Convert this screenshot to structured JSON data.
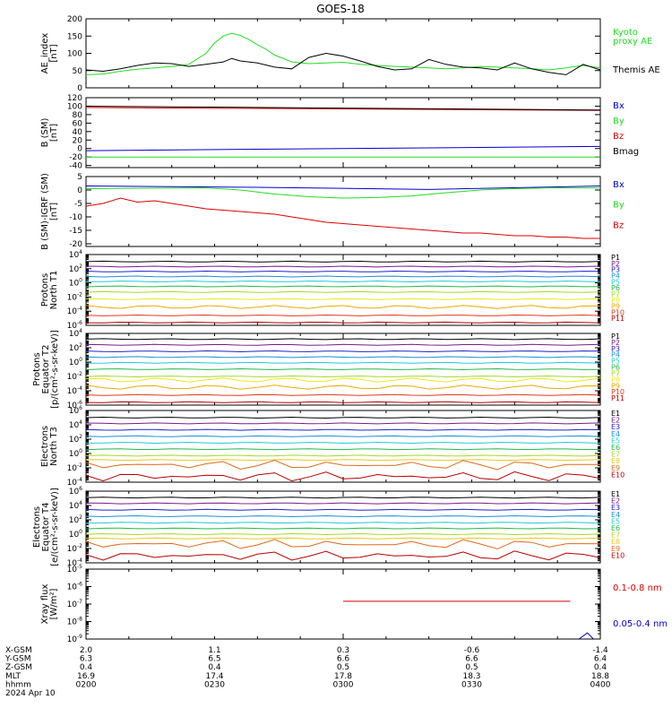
{
  "title": "GOES-18",
  "time_axis": [
    "0200",
    "0230",
    "0300",
    "0330",
    "0400"
  ],
  "ephemeris": {
    "labels": [
      "X-GSM",
      "Y-GSM",
      "Z-GSM",
      "MLT",
      "hhmm"
    ],
    "date": "2024 Apr 10",
    "rows": [
      [
        "2.0",
        "1.1",
        "0.3",
        "-0.6",
        "-1.4"
      ],
      [
        "6.3",
        "6.5",
        "6.6",
        "6.6",
        "6.4"
      ],
      [
        "0.4",
        "0.4",
        "0.5",
        "0.5",
        "0.4"
      ],
      [
        "16.9",
        "17.4",
        "17.8",
        "18.3",
        "18.8"
      ],
      [
        "0200",
        "0230",
        "0300",
        "0330",
        "0400"
      ]
    ]
  },
  "colors": {
    "black": "#000000",
    "green": "#22dd22",
    "red": "#dd0000",
    "blue": "#0000cc",
    "Kyoto": "#22dd22",
    "Themis": "#000000",
    "Bx": "#0000cc",
    "By": "#22dd22",
    "Bz": "#dd0000",
    "Bmag": "#000000",
    "P1": "#000000",
    "P2": "#7a1a8a",
    "P3": "#2222cc",
    "P4": "#1a8fd8",
    "P5": "#22c8d8",
    "P6": "#22b84a",
    "P7": "#a8d822",
    "P8": "#e8e822",
    "P9": "#f0a800",
    "P10": "#e03a1a",
    "P11": "#b80000",
    "E1": "#000000",
    "E2": "#7a1a8a",
    "E3": "#2222cc",
    "E4": "#1a8fd8",
    "E5": "#22c8d8",
    "E6": "#22b84a",
    "E7": "#a8d822",
    "E8": "#e8c822",
    "E9": "#e06a1a",
    "E10": "#b80000",
    "xray_long": "#dd0000",
    "xray_short": "#0000cc"
  },
  "chart_data": [
    {
      "type": "line",
      "id": "ae",
      "ylabel": "AE_index\n[nT]",
      "ylim": [
        0,
        200
      ],
      "log": false,
      "yticks": [
        0,
        50,
        100,
        150,
        200
      ],
      "series": [
        {
          "name": "Kyoto\nproxy AE",
          "color": "Kyoto",
          "x": [
            0,
            2,
            4,
            6,
            8,
            10,
            12,
            14,
            15,
            16,
            17,
            18,
            19,
            20,
            21,
            22,
            24,
            26,
            28,
            30,
            32,
            34,
            36,
            38,
            40,
            42,
            44,
            46,
            48,
            50,
            52,
            54,
            56,
            58,
            60
          ],
          "y": [
            38,
            40,
            48,
            54,
            58,
            62,
            68,
            100,
            130,
            150,
            158,
            152,
            140,
            125,
            112,
            95,
            75,
            70,
            72,
            74,
            68,
            65,
            62,
            60,
            58,
            55,
            58,
            62,
            60,
            58,
            55,
            52,
            58,
            65,
            58
          ]
        },
        {
          "name": "Themis AE",
          "color": "Themis",
          "x": [
            0,
            2,
            4,
            6,
            8,
            10,
            12,
            14,
            16,
            17,
            18,
            20,
            22,
            24,
            26,
            28,
            30,
            32,
            34,
            36,
            38,
            40,
            42,
            44,
            46,
            48,
            50,
            52,
            54,
            56,
            58,
            60
          ],
          "y": [
            52,
            48,
            55,
            65,
            72,
            70,
            62,
            68,
            75,
            85,
            78,
            72,
            60,
            55,
            88,
            100,
            92,
            78,
            62,
            52,
            55,
            82,
            68,
            60,
            58,
            52,
            72,
            55,
            45,
            38,
            68,
            52
          ]
        }
      ]
    },
    {
      "type": "line",
      "id": "bsm",
      "ylabel": "B (SM)\n[nT]",
      "ylim": [
        -45,
        120
      ],
      "log": false,
      "yticks": [
        -40,
        -20,
        0,
        20,
        40,
        60,
        80,
        100,
        120
      ],
      "series": [
        {
          "name": "Bx",
          "color": "Bx",
          "x": [
            0,
            60
          ],
          "y": [
            -5,
            5
          ]
        },
        {
          "name": "By",
          "color": "By",
          "x": [
            0,
            60
          ],
          "y": [
            -20,
            -20
          ]
        },
        {
          "name": "Bz",
          "color": "Bz",
          "x": [
            0,
            60
          ],
          "y": [
            97,
            90
          ]
        },
        {
          "name": "Bmag",
          "color": "Bmag",
          "x": [
            0,
            60
          ],
          "y": [
            100,
            91
          ]
        }
      ]
    },
    {
      "type": "line",
      "id": "bigrf",
      "ylabel": "B (SM)-IGRF (SM)\n[nT]",
      "ylim": [
        -21,
        5
      ],
      "log": false,
      "yticks": [
        -20,
        -15,
        -10,
        -5,
        0,
        5
      ],
      "series": [
        {
          "name": "Bx",
          "color": "Bx",
          "x": [
            0,
            20,
            40,
            60
          ],
          "y": [
            1.5,
            1.0,
            0.2,
            1.5
          ]
        },
        {
          "name": "By",
          "color": "By",
          "x": [
            0,
            14,
            18,
            22,
            26,
            30,
            34,
            38,
            42,
            46,
            50,
            54,
            58,
            60
          ],
          "y": [
            0.5,
            0.8,
            0,
            -1.5,
            -2.5,
            -3.0,
            -2.8,
            -2.2,
            -1.0,
            0,
            0.5,
            0.8,
            0.8,
            0.8
          ]
        },
        {
          "name": "Bz",
          "color": "Bz",
          "x": [
            0,
            2,
            4,
            6,
            8,
            10,
            12,
            14,
            16,
            18,
            20,
            22,
            24,
            26,
            28,
            30,
            32,
            34,
            36,
            38,
            40,
            42,
            44,
            46,
            48,
            50,
            52,
            54,
            56,
            58,
            60
          ],
          "y": [
            -6,
            -5,
            -3,
            -4.5,
            -4,
            -5,
            -6,
            -7,
            -7.5,
            -8,
            -8.5,
            -9,
            -10,
            -11,
            -12,
            -12.5,
            -13,
            -13.5,
            -14,
            -14.5,
            -15,
            -15.5,
            -16,
            -16,
            -16.5,
            -17,
            -17,
            -17.5,
            -17.5,
            -18,
            -18
          ]
        }
      ]
    },
    {
      "type": "line",
      "id": "pn",
      "ylabel": "Protons\nNorth T1",
      "ylim": [
        -6,
        4
      ],
      "log": true,
      "yticks": [
        -6,
        -4,
        -2,
        0,
        2,
        4
      ],
      "channels": [
        "P1",
        "P2",
        "P3",
        "P4",
        "P5",
        "P6",
        "P7",
        "P8",
        "P9",
        "P10",
        "P11"
      ],
      "levels": [
        3.0,
        2.3,
        1.6,
        0.9,
        0.2,
        -0.5,
        -1.3,
        -2.3,
        -3.4,
        -4.6,
        -5.6
      ],
      "series": []
    },
    {
      "type": "line",
      "id": "pe",
      "ylabel": "Protons\nEquator T2\n[p/(cm²-s-sr-keV)]",
      "ylim": [
        -6,
        4
      ],
      "log": true,
      "yticks": [
        -6,
        -4,
        -2,
        0,
        2,
        4
      ],
      "channels": [
        "P1",
        "P2",
        "P3",
        "P4",
        "P5",
        "P6",
        "P7",
        "P8",
        "P9",
        "P10",
        "P11"
      ],
      "levels": [
        3.2,
        2.4,
        1.5,
        0.7,
        -0.1,
        -1.0,
        -2.0,
        -2.5,
        -3.5,
        -4.6,
        -5.6
      ],
      "series": []
    },
    {
      "type": "line",
      "id": "en",
      "ylabel": "Electrons\nNorth T3",
      "ylim": [
        -4,
        6
      ],
      "log": true,
      "yticks": [
        -4,
        -2,
        0,
        2,
        4,
        6
      ],
      "channels": [
        "E1",
        "E2",
        "E3",
        "E4",
        "E5",
        "E6",
        "E7",
        "E8",
        "E9",
        "E10"
      ],
      "levels": [
        5.0,
        4.2,
        3.3,
        2.4,
        1.5,
        0.6,
        -0.3,
        -0.9,
        -1.6,
        -3.2
      ],
      "series": []
    },
    {
      "type": "line",
      "id": "ee",
      "ylabel": "Electrons\nEquator T4\n[e/(cm²-s-sr-keV)]",
      "ylim": [
        -4,
        6
      ],
      "log": true,
      "yticks": [
        -4,
        -2,
        0,
        2,
        4,
        6
      ],
      "channels": [
        "E1",
        "E2",
        "E3",
        "E4",
        "E5",
        "E6",
        "E7",
        "E8",
        "E9",
        "E10"
      ],
      "levels": [
        5.1,
        4.3,
        3.4,
        2.5,
        1.6,
        0.8,
        0.0,
        -0.6,
        -1.4,
        -3.0
      ],
      "series": []
    },
    {
      "type": "line",
      "id": "xray",
      "ylabel": "Xray flux\n[W/m²]",
      "ylim": [
        -9,
        -5
      ],
      "log": true,
      "yticks": [
        -9,
        -8,
        -7,
        -6,
        -5
      ],
      "series": [
        {
          "name": "0.1-0.8 nm",
          "color": "xray_long",
          "x": [
            30.0,
            56.5
          ],
          "y": [
            -6.84,
            -6.84
          ]
        },
        {
          "name": "0.05-0.4 nm",
          "color": "xray_short",
          "x": [
            57.5,
            58.5,
            59.2
          ],
          "y": [
            -9.0,
            -8.65,
            -9.0
          ]
        }
      ]
    }
  ]
}
